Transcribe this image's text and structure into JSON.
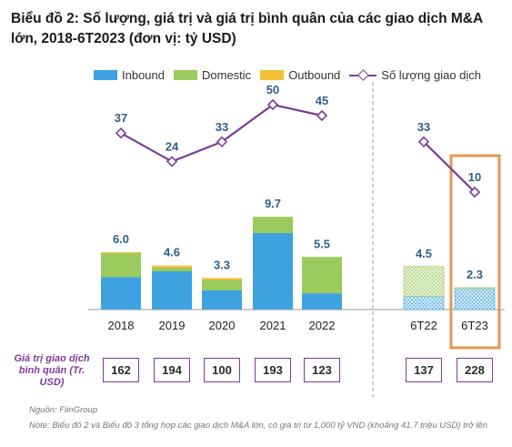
{
  "chart_data": {
    "type": "bar",
    "title": "Biểu đồ 2: Số lượng, giá trị và giá trị bình quân của các giao dịch M&A lớn, 2018-6T2023 (đơn vị: tỷ USD)",
    "categories": [
      "2018",
      "2019",
      "2020",
      "2021",
      "2022",
      "6T22",
      "6T23"
    ],
    "stacked": true,
    "series": [
      {
        "name": "Inbound",
        "color": "#3fa2e0",
        "values": [
          3.4,
          4.0,
          2.0,
          8.0,
          1.7,
          1.4,
          2.2
        ]
      },
      {
        "name": "Domestic",
        "color": "#9acb5c",
        "values": [
          2.5,
          0.4,
          1.1,
          1.7,
          3.8,
          3.1,
          0.1
        ]
      },
      {
        "name": "Outbound",
        "color": "#f2c037",
        "values": [
          0.1,
          0.2,
          0.2,
          0.0,
          0.0,
          0.0,
          0.0
        ]
      }
    ],
    "totals": [
      "6.0",
      "4.6",
      "3.3",
      "9.7",
      "5.5",
      "4.5",
      "2.3"
    ],
    "line_series": {
      "name": "Số lượng giao dịch",
      "color": "#7d3c98",
      "values": [
        37,
        24,
        33,
        50,
        45,
        33,
        10
      ],
      "segments": [
        [
          0,
          1,
          2,
          3,
          4
        ],
        [
          5,
          6
        ]
      ]
    },
    "ylim": [
      0,
      10
    ],
    "legend_position": "top",
    "grid": false,
    "highlight": {
      "category": "6T23",
      "color": "#e8974d"
    }
  },
  "avg_value": {
    "label": "Giá trị giao dịch bình quân (Tr. USD)",
    "values": [
      "162",
      "194",
      "100",
      "193",
      "123",
      "137",
      "228"
    ]
  },
  "source": "Nguồn: FiinGroup",
  "note": "Note: Biểu đồ 2 và Biểu đồ 3 tổng hợp các giao dịch M&A lớn, có giá trị từ 1,000 tỷ VND (khoảng 41.7 triệu USD) trở lên"
}
